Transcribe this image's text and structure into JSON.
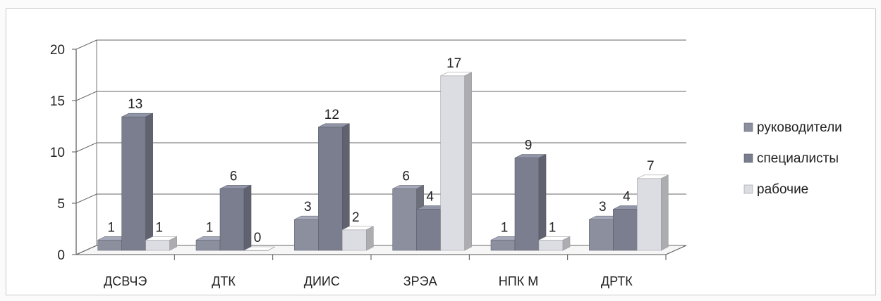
{
  "chart_data": {
    "type": "bar",
    "title": "",
    "xlabel": "",
    "ylabel": "",
    "ylim": [
      0,
      20
    ],
    "yticks": [
      0,
      5,
      10,
      15,
      20
    ],
    "grid": true,
    "legend_position": "right",
    "categories": [
      "ДСВЧЭ",
      "ДТК",
      "ДИИС",
      "ЗРЭА",
      "НПК М",
      "ДРТК"
    ],
    "series": [
      {
        "name": "руководители",
        "values": [
          1,
          1,
          3,
          6,
          1,
          3
        ],
        "color": "#8c8f9e"
      },
      {
        "name": "специалисты",
        "values": [
          13,
          6,
          12,
          4,
          9,
          4
        ],
        "color": "#7b7e8e"
      },
      {
        "name": "рабочие",
        "values": [
          1,
          0,
          2,
          17,
          1,
          7
        ],
        "color": "#dcdde3"
      }
    ]
  }
}
